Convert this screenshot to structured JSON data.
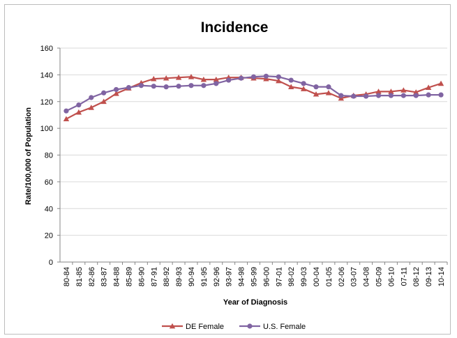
{
  "chart_data": {
    "type": "line",
    "title": "Incidence",
    "xlabel": "Year of Diagnosis",
    "ylabel": "Rate/100,000 of Population",
    "ylim": [
      0,
      160
    ],
    "yticks": [
      0,
      20,
      40,
      60,
      80,
      100,
      120,
      140,
      160
    ],
    "grid": "horizontal",
    "legend_position": "bottom",
    "categories": [
      "80-84",
      "81-85",
      "82-86",
      "83-87",
      "84-88",
      "85-89",
      "86-90",
      "87-91",
      "88-92",
      "89-93",
      "90-94",
      "91-95",
      "92-96",
      "93-97",
      "94-98",
      "95-99",
      "96-00",
      "97-01",
      "98-02",
      "99-03",
      "00-04",
      "01-05",
      "02-06",
      "03-07",
      "04-08",
      "05-09",
      "06-10",
      "07-11",
      "08-12",
      "09-13",
      "10-14"
    ],
    "series": [
      {
        "name": "DE Female",
        "color": "#c0504d",
        "marker": "triangle",
        "values": [
          107,
          112,
          115.5,
          120,
          126,
          130,
          134,
          137,
          137.5,
          138,
          138.5,
          136.5,
          136.5,
          138,
          138,
          137.5,
          137,
          135.5,
          131,
          129.5,
          125.5,
          126.5,
          122.5,
          124.5,
          125.5,
          127.5,
          127.5,
          128.5,
          127,
          130.5,
          133.5
        ]
      },
      {
        "name": "U.S. Female",
        "color": "#8064a2",
        "marker": "circle",
        "values": [
          113,
          117.5,
          123,
          126.5,
          129,
          130.5,
          132,
          131.5,
          131,
          131.5,
          132,
          132,
          133.5,
          136,
          137.5,
          138.5,
          139,
          138.5,
          136,
          133.5,
          131,
          131,
          124.5,
          124,
          124,
          124.5,
          124.5,
          124.5,
          124.5,
          125,
          125
        ]
      }
    ]
  }
}
